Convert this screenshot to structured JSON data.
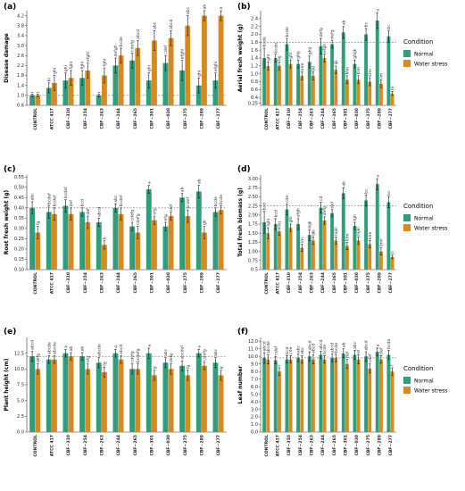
{
  "figure": {
    "colors": {
      "normal": "#2E9E7C",
      "water_stress": "#D98A1E",
      "error": "#111111",
      "refline": "#555555"
    },
    "legend": {
      "title": "Condition",
      "items": [
        "Normal",
        "Water stress"
      ]
    }
  },
  "chart_data": [
    {
      "type": "bar",
      "letter": "(a)",
      "ylabel": "Disease damage",
      "categories": [
        "CONTROL",
        "ATCC 417",
        "CBF−310",
        "CBF−254",
        "CBF−263",
        "CBF−244",
        "CBF−265",
        "CBF−301",
        "CBF−030",
        "CBF−275",
        "CBF−289",
        "CBF−277"
      ],
      "ylim": [
        0.6,
        4.4
      ],
      "yticks": [
        "0.6",
        "1.0",
        "1.4",
        "1.8",
        "2.2",
        "2.6",
        "3.0",
        "3.4",
        "3.8",
        "4.2"
      ],
      "refline": 1.0,
      "legend": false,
      "series": [
        {
          "name": "Normal",
          "values": [
            1.0,
            1.3,
            1.6,
            1.7,
            1.0,
            2.2,
            2.4,
            1.6,
            2.3,
            2.0,
            1.4,
            1.6
          ],
          "err": [
            0.05,
            0.2,
            0.3,
            0.3,
            0.05,
            0.3,
            0.3,
            0.3,
            0.3,
            0.4,
            0.3,
            0.3
          ],
          "labels": [
            "i",
            "hi",
            "ghi",
            "fghi",
            "i",
            "defgh",
            "cdefg",
            "ghi",
            "cdef",
            "efghi",
            "ghi",
            "efghi"
          ]
        },
        {
          "name": "Water stress",
          "values": [
            1.0,
            1.5,
            1.7,
            2.0,
            1.8,
            2.6,
            2.9,
            3.2,
            3.3,
            3.8,
            4.2,
            4.2
          ],
          "err": [
            0.05,
            0.3,
            0.3,
            0.3,
            0.3,
            0.3,
            0.3,
            0.4,
            0.3,
            0.4,
            0.2,
            0.2
          ],
          "labels": [
            "i",
            "ghi",
            "fghi",
            "efghi",
            "fghi",
            "bcde",
            "abcd",
            "abc",
            "abcd",
            "abc",
            "ab",
            "a"
          ]
        }
      ]
    },
    {
      "type": "bar",
      "letter": "(b)",
      "ylabel": "Aerial fresh weight (g)",
      "categories": [
        "CONTROL",
        "ATCC 417",
        "CBF−310",
        "CBF−254",
        "CBF−263",
        "CBF−244",
        "CBF−265",
        "CBF−301",
        "CBF−030",
        "CBF−275",
        "CBF−289",
        "CBF−277"
      ],
      "ylim": [
        0.2,
        2.6
      ],
      "yticks": [
        "0.25",
        "0.4",
        "0.6",
        "0.8",
        "1.0",
        "1.2",
        "1.4",
        "1.6",
        "1.8",
        "2.0",
        "2.2",
        "2.4"
      ],
      "refline": 1.8,
      "legend": true,
      "series": [
        {
          "name": "Normal",
          "values": [
            1.4,
            1.4,
            1.75,
            1.25,
            1.3,
            1.7,
            1.75,
            2.05,
            1.25,
            2.0,
            2.35,
            1.95
          ],
          "err": [
            0.25,
            0.1,
            0.15,
            0.1,
            0.15,
            0.2,
            0.1,
            0.15,
            0.1,
            0.15,
            0.2,
            0.15
          ],
          "labels": [
            "bcde",
            "bcde",
            "bcde",
            "ghij",
            "ghij",
            "defg",
            "defg",
            "ab",
            "ghijk",
            "bc",
            "a",
            "bc"
          ]
        },
        {
          "name": "Water stress",
          "values": [
            1.2,
            1.2,
            1.25,
            0.95,
            0.95,
            1.4,
            1.1,
            0.85,
            0.85,
            0.8,
            0.75,
            0.5
          ],
          "err": [
            0.1,
            0.1,
            0.1,
            0.1,
            0.1,
            0.1,
            0.1,
            0.1,
            0.1,
            0.1,
            0.1,
            0.05
          ],
          "labels": [
            "ghi",
            "hij",
            "ghi",
            "klm",
            "jkl",
            "efgh",
            "ijk",
            "klm",
            "klm",
            "klm",
            "lm",
            "m"
          ]
        }
      ]
    },
    {
      "type": "bar",
      "letter": "(c)",
      "ylabel": "Root fresh weight (g)",
      "categories": [
        "CONTROL",
        "ATCC 417",
        "CBF−310",
        "CBF−254",
        "CBF−263",
        "CBF−244",
        "CBF−265",
        "CBF−301",
        "CBF−030",
        "CBF−275",
        "CBF−289",
        "CBF−277"
      ],
      "ylim": [
        0.1,
        0.56
      ],
      "yticks": [
        "0.10",
        "0.15",
        "0.20",
        "0.25",
        "0.30",
        "0.35",
        "0.40",
        "0.45",
        "0.50",
        "0.55"
      ],
      "refline": 0.4,
      "legend": false,
      "series": [
        {
          "name": "Normal",
          "values": [
            0.4,
            0.38,
            0.41,
            0.38,
            0.33,
            0.4,
            0.31,
            0.49,
            0.31,
            0.45,
            0.48,
            0.38
          ],
          "err": [
            0.03,
            0.03,
            0.03,
            0.02,
            0.02,
            0.02,
            0.02,
            0.02,
            0.02,
            0.02,
            0.03,
            0.02
          ],
          "labels": [
            "abc",
            "bcdef",
            "bcdef",
            "bcd",
            "abcd",
            "abc",
            "cdefg",
            "a",
            "efg",
            "ab",
            "ab",
            "bcde"
          ]
        },
        {
          "name": "Water stress",
          "values": [
            0.28,
            0.37,
            0.37,
            0.33,
            0.22,
            0.37,
            0.28,
            0.34,
            0.36,
            0.36,
            0.28,
            0.39
          ],
          "err": [
            0.03,
            0.03,
            0.03,
            0.03,
            0.02,
            0.03,
            0.03,
            0.02,
            0.02,
            0.03,
            0.03,
            0.02
          ],
          "labels": [
            "fg",
            "bcdef",
            "def",
            "def",
            "h",
            "bcdef",
            "cdefg",
            "efg",
            "def",
            "bcdef",
            "gh",
            "bcde"
          ]
        }
      ]
    },
    {
      "type": "bar",
      "letter": "(d)",
      "ylabel": "Total fresh biomass (g)",
      "categories": [
        "CONTROL",
        "ATCC 417",
        "CBF−310",
        "CBF−254",
        "CBF−263",
        "CBF−244",
        "CBF−265",
        "CBF−301",
        "CBF−030",
        "CBF−275",
        "CBF−289",
        "CBF−277"
      ],
      "ylim": [
        0.5,
        3.1
      ],
      "yticks": [
        "0.5",
        "0.75",
        "1.00",
        "1.25",
        "1.50",
        "1.75",
        "2.00",
        "2.25",
        "2.50",
        "2.75",
        "3.00"
      ],
      "refline": 2.25,
      "legend": true,
      "series": [
        {
          "name": "Normal",
          "values": [
            1.8,
            1.75,
            2.15,
            1.75,
            1.45,
            2.2,
            2.05,
            2.6,
            1.7,
            2.4,
            2.85,
            2.35
          ],
          "err": [
            0.3,
            0.15,
            0.15,
            0.15,
            0.15,
            0.15,
            0.1,
            0.15,
            0.1,
            0.15,
            0.15,
            0.15
          ],
          "labels": [
            "bcd",
            "bcd",
            "cde",
            "efgh",
            "hijk",
            "cd",
            "def",
            "ab",
            "fgh",
            "bc",
            "a",
            "bc"
          ]
        },
        {
          "name": "Water stress",
          "values": [
            1.5,
            1.55,
            1.65,
            1.1,
            1.3,
            1.85,
            1.3,
            1.15,
            1.3,
            1.2,
            1.0,
            0.85
          ],
          "err": [
            0.15,
            0.1,
            0.1,
            0.1,
            0.1,
            0.1,
            0.1,
            0.1,
            0.1,
            0.1,
            0.1,
            0.05
          ],
          "labels": [
            "fghi",
            "hij",
            "ghi",
            "lm",
            "ijkl",
            "defg",
            "hijkl",
            "klm",
            "hijkl",
            "klm",
            "lmn",
            "n"
          ]
        }
      ]
    },
    {
      "type": "bar",
      "letter": "(e)",
      "ylabel": "Plant height (cm)",
      "categories": [
        "CONTROL",
        "ATCC 417",
        "CBF−310",
        "CBF−254",
        "CBF−263",
        "CBF−244",
        "CBF−265",
        "CBF−301",
        "CBF−030",
        "CBF−275",
        "CBF−289",
        "CBF−277"
      ],
      "ylim": [
        0,
        15
      ],
      "yticks": [
        "0.0",
        "2.5",
        "5.0",
        "7.5",
        "10.0",
        "12.5"
      ],
      "refline": 12.0,
      "legend": false,
      "series": [
        {
          "name": "Normal",
          "values": [
            12.0,
            11.5,
            12.5,
            12.0,
            11.0,
            12.5,
            10.0,
            12.5,
            11.0,
            10.5,
            12.5,
            11.0
          ],
          "err": [
            0.8,
            0.6,
            0.6,
            0.6,
            0.8,
            0.6,
            0.8,
            0.8,
            0.8,
            0.8,
            0.6,
            0.8
          ],
          "labels": [
            "abcd",
            "abcde",
            "a",
            "ab",
            "abcde",
            "a",
            "cdefg",
            "a",
            "abc",
            "abcdef",
            "a",
            "abc"
          ]
        },
        {
          "name": "Water stress",
          "values": [
            10.0,
            11.5,
            12.0,
            10.0,
            9.5,
            11.5,
            10.0,
            9.0,
            10.0,
            9.0,
            10.5,
            9.0
          ],
          "err": [
            0.8,
            0.6,
            0.6,
            0.8,
            0.8,
            0.6,
            0.8,
            0.8,
            0.8,
            0.8,
            0.6,
            0.8
          ],
          "labels": [
            "defg",
            "abcde",
            "ab",
            "efg",
            "fg",
            "abcd",
            "bcdefg",
            "g",
            "defg",
            "fg",
            "cdefg",
            "g"
          ]
        }
      ]
    },
    {
      "type": "bar",
      "letter": "(f)",
      "ylabel": "Leaf number",
      "categories": [
        "CONTROL",
        "ATCC 417",
        "CBF−310",
        "CBF−254",
        "CBF−263",
        "CBF−244",
        "CBF−265",
        "CBF−301",
        "CBF−030",
        "CBF−275",
        "CBF−289",
        "CBF−277"
      ],
      "ylim": [
        0,
        12.5
      ],
      "yticks": [
        "0.0",
        "1.0",
        "2.0",
        "3.0",
        "4.0",
        "5.0",
        "6.0",
        "7.0",
        "8.0",
        "9.0",
        "10.0",
        "11.0",
        "12.0"
      ],
      "refline": 9.8,
      "legend": true,
      "series": [
        {
          "name": "Normal",
          "values": [
            9.8,
            9.5,
            9.6,
            9.8,
            10.0,
            10.2,
            9.8,
            10.4,
            10.2,
            10.0,
            10.6,
            10.2
          ],
          "err": [
            0.7,
            0.5,
            0.5,
            0.5,
            0.6,
            0.5,
            0.5,
            0.6,
            0.6,
            0.6,
            0.5,
            0.6
          ],
          "labels": [
            "abcd",
            "cdef",
            "bcd",
            "abc",
            "abcd",
            "abcd",
            "abcd",
            "ab",
            "abc",
            "abcd",
            "a",
            "bcda"
          ]
        },
        {
          "name": "Water stress",
          "values": [
            9.6,
            8.0,
            9.6,
            9.6,
            9.6,
            9.6,
            9.8,
            9.0,
            9.6,
            8.4,
            9.6,
            8.0
          ],
          "err": [
            0.6,
            0.5,
            0.5,
            0.5,
            0.6,
            0.5,
            0.5,
            0.6,
            0.6,
            0.6,
            0.5,
            0.5
          ],
          "labels": [
            "abcde",
            "f",
            "cde",
            "abc",
            "abcd",
            "bcde",
            "bcde",
            "def",
            "ef",
            "cdef",
            "def",
            "f"
          ]
        }
      ]
    }
  ]
}
